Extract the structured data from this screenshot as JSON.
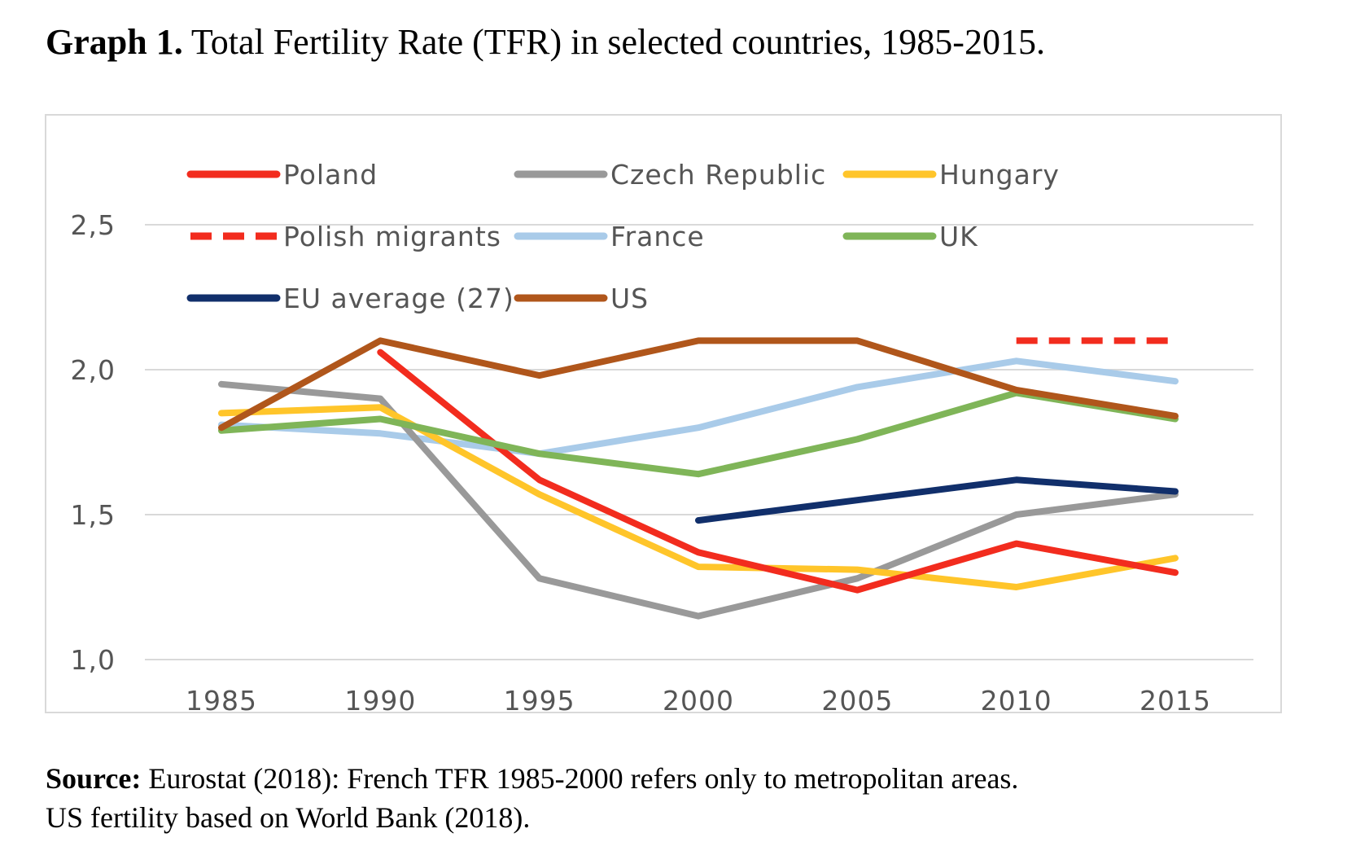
{
  "title": {
    "lead": "Graph 1.",
    "rest": " Total Fertility Rate (TFR) in selected countries, 1985-2015."
  },
  "source": {
    "lead": "Source:",
    "line1_rest": " Eurostat (2018): French TFR 1985-2000 refers only to metropolitan areas.",
    "line2": "US fertility based on World Bank (2018)."
  },
  "chart_data": {
    "type": "line",
    "title": "Total Fertility Rate (TFR) in selected countries, 1985-2015",
    "xlabel": "",
    "ylabel": "",
    "x": [
      1985,
      1990,
      1995,
      2000,
      2005,
      2010,
      2015
    ],
    "x_tick_labels": [
      "1985",
      "1990",
      "1995",
      "2000",
      "2005",
      "2010",
      "2015"
    ],
    "ylim": [
      1.0,
      2.5
    ],
    "y_ticks": [
      1.0,
      1.5,
      2.0,
      2.5
    ],
    "y_tick_labels": [
      "1,0",
      "1,5",
      "2,0",
      "2,5"
    ],
    "grid": true,
    "legend_position": "top",
    "series": [
      {
        "name": "Poland",
        "color": "#f22c1e",
        "dashed": false,
        "values": [
          null,
          2.06,
          1.62,
          1.37,
          1.24,
          1.4,
          1.3
        ]
      },
      {
        "name": "Czech Republic",
        "color": "#999999",
        "dashed": false,
        "values": [
          1.95,
          1.9,
          1.28,
          1.15,
          1.28,
          1.5,
          1.57
        ]
      },
      {
        "name": "Hungary",
        "color": "#ffc52a",
        "dashed": false,
        "values": [
          1.85,
          1.87,
          1.57,
          1.32,
          1.31,
          1.25,
          1.35
        ]
      },
      {
        "name": "Polish migrants",
        "color": "#f22c1e",
        "dashed": true,
        "values": [
          null,
          null,
          null,
          null,
          null,
          2.1,
          2.1
        ]
      },
      {
        "name": "France",
        "color": "#a9cbe9",
        "dashed": false,
        "values": [
          1.81,
          1.78,
          1.71,
          1.8,
          1.94,
          2.03,
          1.96
        ]
      },
      {
        "name": "UK",
        "color": "#7fb558",
        "dashed": false,
        "values": [
          1.79,
          1.83,
          1.71,
          1.64,
          1.76,
          1.92,
          1.83
        ]
      },
      {
        "name": "EU average (27)",
        "color": "#112f6b",
        "dashed": false,
        "values": [
          null,
          null,
          null,
          1.48,
          1.55,
          1.62,
          1.58
        ]
      },
      {
        "name": "US",
        "color": "#b0561b",
        "dashed": false,
        "values": [
          1.8,
          2.1,
          1.98,
          2.1,
          2.1,
          1.93,
          1.84
        ]
      }
    ]
  }
}
